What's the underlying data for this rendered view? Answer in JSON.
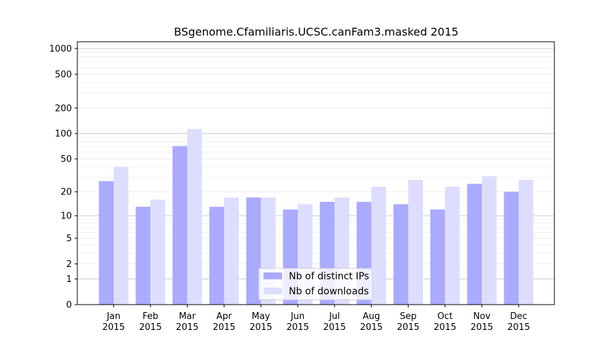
{
  "chart_data": {
    "type": "bar",
    "title": "BSgenome.Cfamiliaris.UCSC.canFam3.masked 2015",
    "xlabel": "",
    "ylabel": "",
    "y_scale": "log(1+y)",
    "ylim": [
      0,
      1200
    ],
    "y_ticks": [
      0,
      1,
      2,
      5,
      10,
      20,
      50,
      100,
      200,
      500,
      1000
    ],
    "grid": "horizontal",
    "legend_position": "bottom-center",
    "categories": [
      [
        "Jan",
        "2015"
      ],
      [
        "Feb",
        "2015"
      ],
      [
        "Mar",
        "2015"
      ],
      [
        "Apr",
        "2015"
      ],
      [
        "May",
        "2015"
      ],
      [
        "Jun",
        "2015"
      ],
      [
        "Jul",
        "2015"
      ],
      [
        "Aug",
        "2015"
      ],
      [
        "Sep",
        "2015"
      ],
      [
        "Oct",
        "2015"
      ],
      [
        "Nov",
        "2015"
      ],
      [
        "Dec",
        "2015"
      ]
    ],
    "series": [
      {
        "name": "Nb of distinct IPs",
        "color": "#aaaaff",
        "values": [
          27,
          13,
          71,
          13,
          17,
          12,
          15,
          15,
          14,
          12,
          25,
          20
        ]
      },
      {
        "name": "Nb of downloads",
        "color": "#ddddff",
        "values": [
          40,
          16,
          113,
          17,
          17,
          14,
          17,
          23,
          28,
          23,
          31,
          28
        ]
      }
    ]
  }
}
